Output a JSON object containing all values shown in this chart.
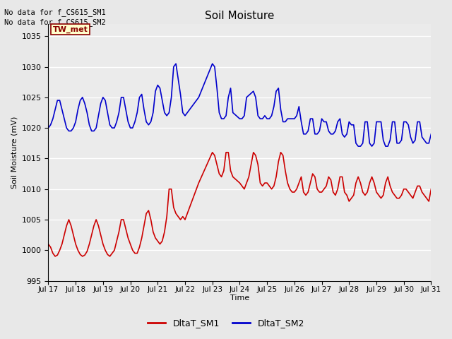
{
  "title": "Soil Moisture",
  "ylabel": "Soil Moisture (mV)",
  "xlabel": "Time",
  "ylim": [
    995,
    1037
  ],
  "yticks": [
    995,
    1000,
    1005,
    1010,
    1015,
    1020,
    1025,
    1030,
    1035
  ],
  "xtick_labels": [
    "Jul 17",
    "Jul 18",
    "Jul 19",
    "Jul 20",
    "Jul 21",
    "Jul 22",
    "Jul 23",
    "Jul 24",
    "Jul 25",
    "Jul 26",
    "Jul 27",
    "Jul 28",
    "Jul 29",
    "Jul 30",
    "Jul 31"
  ],
  "no_data_text": [
    "No data for f_CS615_SM1",
    "No data for f_CS615_SM2"
  ],
  "station_label": "TW_met",
  "station_label_color": "#8b0000",
  "station_box_facecolor": "#ffffcc",
  "station_box_edgecolor": "#8b0000",
  "legend_entries": [
    "DltaT_SM1",
    "DltaT_SM2"
  ],
  "line1_color": "#cc0000",
  "line2_color": "#0000cc",
  "fig_facecolor": "#e8e8e8",
  "axes_facecolor": "#ebebeb",
  "grid_color": "#ffffff",
  "sm1_x": [
    0.0,
    0.083,
    0.167,
    0.25,
    0.333,
    0.417,
    0.5,
    0.583,
    0.667,
    0.75,
    0.833,
    0.917,
    1.0,
    1.083,
    1.167,
    1.25,
    1.333,
    1.417,
    1.5,
    1.583,
    1.667,
    1.75,
    1.833,
    1.917,
    2.0,
    2.083,
    2.167,
    2.25,
    2.333,
    2.417,
    2.5,
    2.583,
    2.667,
    2.75,
    2.833,
    2.917,
    3.0,
    3.083,
    3.167,
    3.25,
    3.333,
    3.417,
    3.5,
    3.583,
    3.667,
    3.75,
    3.833,
    3.917,
    4.0,
    4.083,
    4.167,
    4.25,
    4.333,
    4.417,
    4.5,
    4.583,
    4.667,
    4.75,
    4.833,
    4.917,
    5.0,
    5.5,
    6.0,
    6.083,
    6.167,
    6.25,
    6.333,
    6.417,
    6.5,
    6.583,
    6.667,
    6.75,
    7.0,
    7.083,
    7.167,
    7.25,
    7.333,
    7.5,
    7.583,
    7.667,
    7.75,
    7.833,
    7.917,
    8.0,
    8.083,
    8.167,
    8.25,
    8.333,
    8.417,
    8.5,
    8.583,
    8.667,
    8.75,
    8.833,
    8.917,
    9.0,
    9.083,
    9.167,
    9.25,
    9.333,
    9.417,
    9.5,
    9.583,
    9.667,
    9.75,
    9.833,
    9.917,
    10.0,
    10.083,
    10.167,
    10.25,
    10.333,
    10.417,
    10.5,
    10.583,
    10.667,
    10.75,
    10.833,
    10.917,
    11.0,
    11.083,
    11.167,
    11.25,
    11.333,
    11.417,
    11.5,
    11.583,
    11.667,
    11.75,
    11.833,
    11.917,
    12.0,
    12.083,
    12.167,
    12.25,
    12.333,
    12.417,
    12.5,
    12.583,
    12.667,
    12.75,
    12.833,
    12.917,
    13.0,
    13.083,
    13.167,
    13.25,
    13.333,
    13.417,
    13.5,
    13.583,
    13.667,
    13.75,
    13.833,
    13.917,
    14.0
  ],
  "sm1_y": [
    1001,
    1000.5,
    999.5,
    999,
    999.2,
    1000,
    1001,
    1002.5,
    1004,
    1005,
    1004,
    1002.5,
    1001,
    1000,
    999.3,
    999,
    999.2,
    999.8,
    1001,
    1002.5,
    1004,
    1005,
    1004,
    1002.5,
    1001,
    1000,
    999.3,
    999,
    999.5,
    1000,
    1001.5,
    1003,
    1005,
    1005,
    1003.5,
    1002,
    1001,
    1000,
    999.5,
    999.5,
    1000.5,
    1002,
    1004,
    1006,
    1006.5,
    1005,
    1003,
    1002,
    1001.5,
    1001,
    1001.5,
    1003,
    1005.5,
    1010,
    1010,
    1007,
    1006,
    1005.5,
    1005,
    1005.5,
    1005,
    1011,
    1016,
    1015.5,
    1014,
    1012.5,
    1012,
    1013,
    1016,
    1016,
    1013,
    1012,
    1011,
    1010.5,
    1010,
    1011,
    1012,
    1016,
    1015.5,
    1014,
    1011,
    1010.5,
    1011,
    1011,
    1010.5,
    1010,
    1010.5,
    1012,
    1014.5,
    1016,
    1015.5,
    1013,
    1011,
    1010,
    1009.5,
    1009.5,
    1010,
    1011,
    1012,
    1009.5,
    1009,
    1009.5,
    1011,
    1012.5,
    1012,
    1010,
    1009.5,
    1009.5,
    1010,
    1010.5,
    1012,
    1011.5,
    1009.5,
    1009,
    1010,
    1012,
    1012,
    1009.5,
    1009,
    1008,
    1008.5,
    1009,
    1011,
    1012,
    1011,
    1009.5,
    1009,
    1009.5,
    1011,
    1012,
    1011,
    1009.5,
    1009,
    1008.5,
    1009,
    1011,
    1012,
    1010.5,
    1009.5,
    1009,
    1008.5,
    1008.5,
    1009,
    1010,
    1010,
    1009.5,
    1009,
    1008.5,
    1009.5,
    1010.5,
    1010.5,
    1009.5,
    1009,
    1008.5,
    1008,
    1010
  ],
  "sm2_x": [
    0.0,
    0.083,
    0.167,
    0.25,
    0.333,
    0.417,
    0.5,
    0.583,
    0.667,
    0.75,
    0.833,
    0.917,
    1.0,
    1.083,
    1.167,
    1.25,
    1.333,
    1.417,
    1.5,
    1.583,
    1.667,
    1.75,
    1.833,
    1.917,
    2.0,
    2.083,
    2.167,
    2.25,
    2.333,
    2.417,
    2.5,
    2.583,
    2.667,
    2.75,
    2.833,
    2.917,
    3.0,
    3.083,
    3.167,
    3.25,
    3.333,
    3.417,
    3.5,
    3.583,
    3.667,
    3.75,
    3.833,
    3.917,
    4.0,
    4.083,
    4.167,
    4.25,
    4.333,
    4.417,
    4.5,
    4.583,
    4.667,
    4.75,
    4.833,
    4.917,
    5.0,
    5.5,
    6.0,
    6.083,
    6.167,
    6.25,
    6.333,
    6.417,
    6.5,
    6.583,
    6.667,
    6.75,
    7.0,
    7.083,
    7.167,
    7.25,
    7.5,
    7.583,
    7.667,
    7.75,
    7.833,
    7.917,
    8.0,
    8.083,
    8.167,
    8.25,
    8.333,
    8.417,
    8.5,
    8.583,
    8.667,
    8.75,
    8.833,
    8.917,
    9.0,
    9.083,
    9.167,
    9.25,
    9.333,
    9.417,
    9.5,
    9.583,
    9.667,
    9.75,
    9.833,
    9.917,
    10.0,
    10.083,
    10.167,
    10.25,
    10.333,
    10.417,
    10.5,
    10.583,
    10.667,
    10.75,
    10.833,
    10.917,
    11.0,
    11.083,
    11.167,
    11.25,
    11.333,
    11.417,
    11.5,
    11.583,
    11.667,
    11.75,
    11.833,
    11.917,
    12.0,
    12.083,
    12.167,
    12.25,
    12.333,
    12.417,
    12.5,
    12.583,
    12.667,
    12.75,
    12.833,
    12.917,
    13.0,
    13.083,
    13.167,
    13.25,
    13.333,
    13.417,
    13.5,
    13.583,
    13.667,
    13.75,
    13.833,
    13.917,
    14.0
  ],
  "sm2_y": [
    1020,
    1020.5,
    1021.5,
    1023,
    1024.5,
    1024.5,
    1023,
    1021.5,
    1020,
    1019.5,
    1019.5,
    1020,
    1021,
    1023,
    1024.5,
    1025,
    1024,
    1022.5,
    1020.5,
    1019.5,
    1019.5,
    1020,
    1022,
    1024,
    1025,
    1024.5,
    1022.5,
    1020.5,
    1020,
    1020,
    1021,
    1022.5,
    1025,
    1025,
    1023,
    1021,
    1020,
    1020,
    1021,
    1022.5,
    1025,
    1025.5,
    1023,
    1021,
    1020.5,
    1021,
    1022.5,
    1026,
    1027,
    1026.5,
    1024.5,
    1022.5,
    1022,
    1022.5,
    1025,
    1030,
    1030.5,
    1028,
    1025.5,
    1022.5,
    1022,
    1025,
    1030.5,
    1030,
    1026.5,
    1022.5,
    1021.5,
    1021.5,
    1022,
    1025,
    1026.5,
    1022.5,
    1021.5,
    1021.5,
    1022,
    1025,
    1026,
    1025,
    1022,
    1021.5,
    1021.5,
    1022,
    1021.5,
    1021.5,
    1022,
    1023.5,
    1026,
    1026.5,
    1023,
    1021,
    1021,
    1021.5,
    1021.5,
    1021.5,
    1021.5,
    1022,
    1023.5,
    1021,
    1019,
    1019,
    1019.5,
    1021.5,
    1021.5,
    1019,
    1019,
    1019.5,
    1021.5,
    1021,
    1021,
    1019.5,
    1019,
    1019,
    1019.5,
    1021,
    1021.5,
    1019,
    1018.5,
    1019,
    1021,
    1020.5,
    1020.5,
    1017.5,
    1017,
    1017,
    1017.5,
    1021,
    1021,
    1017.5,
    1017,
    1017.5,
    1021,
    1021,
    1021,
    1018,
    1017,
    1017,
    1018,
    1021,
    1021,
    1017.5,
    1017.5,
    1018,
    1021,
    1021,
    1020.5,
    1018.5,
    1017.5,
    1018,
    1021,
    1021,
    1018.5,
    1018,
    1017.5,
    1017.5,
    1019
  ]
}
